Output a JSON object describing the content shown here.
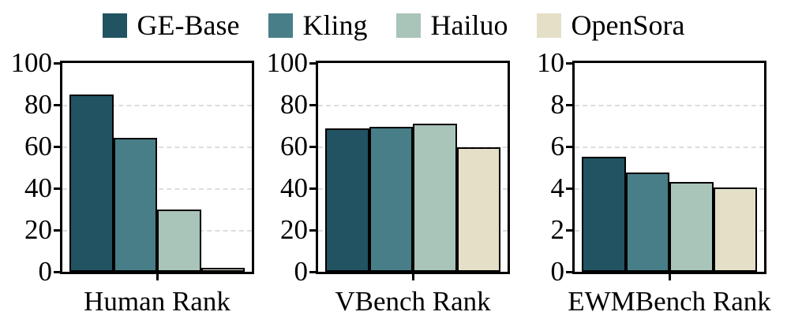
{
  "legend": {
    "items": [
      {
        "label": "GE-Base",
        "color": "#215362",
        "swatch_icon": "legend-swatch-ge-base"
      },
      {
        "label": "Kling",
        "color": "#487E88",
        "swatch_icon": "legend-swatch-kling"
      },
      {
        "label": "Hailuo",
        "color": "#A9C4B8",
        "swatch_icon": "legend-swatch-hailuo"
      },
      {
        "label": "OpenSora",
        "color": "#E4DFC7",
        "swatch_icon": "legend-swatch-opensora"
      }
    ],
    "position": "top-center"
  },
  "chart_data": [
    {
      "type": "bar",
      "title": "Human Rank",
      "xlabel": "Human Rank",
      "ylabel": "",
      "categories": [
        "GE-Base",
        "Kling",
        "Hailuo",
        "OpenSora"
      ],
      "values": [
        85,
        64,
        30,
        1
      ],
      "ylim": [
        0,
        100
      ],
      "yticks": [
        0,
        20,
        40,
        60,
        80,
        100
      ],
      "grid": true,
      "grid_style": "dashed",
      "legend_position": "top"
    },
    {
      "type": "bar",
      "title": "VBench Rank",
      "xlabel": "VBench Rank",
      "ylabel": "",
      "categories": [
        "GE-Base",
        "Kling",
        "Hailuo",
        "OpenSora"
      ],
      "values": [
        68.5,
        69.5,
        71,
        59.5
      ],
      "ylim": [
        0,
        100
      ],
      "yticks": [
        0,
        20,
        40,
        60,
        80,
        100
      ],
      "grid": true,
      "grid_style": "dashed",
      "legend_position": "top"
    },
    {
      "type": "bar",
      "title": "EWMBench Rank",
      "xlabel": "EWMBench Rank",
      "ylabel": "",
      "categories": [
        "GE-Base",
        "Kling",
        "Hailuo",
        "OpenSora"
      ],
      "values": [
        5.5,
        4.75,
        4.3,
        4.05
      ],
      "ylim": [
        0,
        10
      ],
      "yticks": [
        0,
        2,
        4,
        6,
        8,
        10
      ],
      "grid": true,
      "grid_style": "dashed",
      "legend_position": "top"
    }
  ],
  "style": {
    "bar_colors": [
      "#215362",
      "#487E88",
      "#A9C4B8",
      "#E4DFC7"
    ],
    "bar_edge_color": "#000000",
    "spine_color": "#000000",
    "grid_color": "#dcdcdc",
    "background": "#ffffff",
    "text_color": "#000000"
  }
}
